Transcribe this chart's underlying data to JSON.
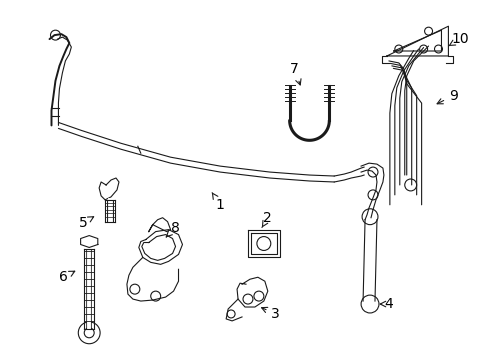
{
  "background_color": "#ffffff",
  "line_color": "#1a1a1a",
  "text_color": "#000000",
  "label_fontsize": 10,
  "figsize": [
    4.89,
    3.6
  ],
  "dpi": 100
}
